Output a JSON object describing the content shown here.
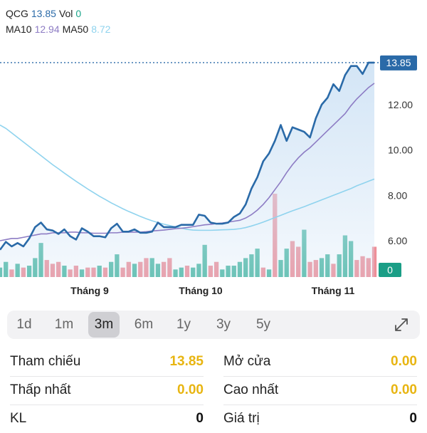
{
  "legend": {
    "symbol": "QCG",
    "price": "13.85",
    "vol_label": "Vol",
    "vol": "0",
    "ma10_label": "MA10",
    "ma10": "12.94",
    "ma50_label": "MA50",
    "ma50": "8.72"
  },
  "colors": {
    "price_line": "#2a6aa8",
    "area_fill": "#d3e5f6",
    "ma10": "#8d7cc4",
    "ma50": "#8fd3ee",
    "vol_up": "#4bb8a3",
    "vol_down": "#ee8e98",
    "price_badge": "#2a6aa8",
    "vol_badge": "#1a9e86"
  },
  "chart_data": {
    "type": "line",
    "ylim": [
      4.4,
      14.6
    ],
    "yticks": [
      "12.00",
      "10.00",
      "8.00",
      "6.00"
    ],
    "ytick_values": [
      12,
      10,
      8,
      6
    ],
    "xticks": [
      "Tháng 9",
      "Tháng 10",
      "Tháng 11"
    ],
    "current_price_label": "13.85",
    "current_price": 13.85,
    "current_volume_label": "0",
    "series": [
      {
        "name": "QCG",
        "values": [
          5.6,
          5.95,
          5.75,
          5.9,
          5.75,
          6.1,
          6.6,
          6.8,
          6.5,
          6.45,
          6.3,
          6.5,
          6.2,
          6.05,
          6.55,
          6.4,
          6.2,
          6.2,
          6.15,
          6.55,
          6.75,
          6.4,
          6.4,
          6.5,
          6.35,
          6.35,
          6.4,
          6.8,
          6.6,
          6.6,
          6.6,
          6.7,
          6.7,
          6.7,
          7.15,
          7.1,
          6.8,
          6.75,
          6.75,
          6.8,
          7.05,
          7.2,
          7.6,
          8.3,
          8.8,
          9.5,
          9.85,
          10.4,
          11.1,
          10.4,
          11.0,
          10.9,
          10.8,
          10.55,
          11.4,
          12.0,
          12.3,
          12.9,
          12.6,
          13.3,
          13.7,
          13.7,
          13.35,
          13.85,
          13.85
        ]
      },
      {
        "name": "MA10",
        "values": [
          6.0,
          6.05,
          6.1,
          6.1,
          6.15,
          6.2,
          6.25,
          6.3,
          6.3,
          6.35,
          6.35,
          6.35,
          6.38,
          6.38,
          6.35,
          6.35,
          6.33,
          6.33,
          6.33,
          6.35,
          6.35,
          6.38,
          6.38,
          6.38,
          6.38,
          6.4,
          6.43,
          6.45,
          6.47,
          6.5,
          6.53,
          6.55,
          6.58,
          6.62,
          6.66,
          6.7,
          6.72,
          6.76,
          6.78,
          6.82,
          6.86,
          6.9,
          7.0,
          7.15,
          7.35,
          7.6,
          7.9,
          8.25,
          8.6,
          9.0,
          9.35,
          9.65,
          9.9,
          10.1,
          10.35,
          10.6,
          10.85,
          11.1,
          11.35,
          11.6,
          11.95,
          12.25,
          12.5,
          12.75,
          12.94
        ]
      },
      {
        "name": "MA50",
        "values": [
          11.1,
          10.95,
          10.75,
          10.55,
          10.35,
          10.15,
          9.95,
          9.75,
          9.55,
          9.35,
          9.17,
          8.98,
          8.8,
          8.62,
          8.45,
          8.28,
          8.12,
          7.96,
          7.82,
          7.67,
          7.54,
          7.41,
          7.29,
          7.18,
          7.07,
          6.97,
          6.88,
          6.8,
          6.73,
          6.67,
          6.6,
          6.55,
          6.5,
          6.47,
          6.46,
          6.46,
          6.46,
          6.47,
          6.48,
          6.49,
          6.5,
          6.53,
          6.58,
          6.65,
          6.73,
          6.82,
          6.92,
          7.02,
          7.12,
          7.22,
          7.32,
          7.41,
          7.5,
          7.6,
          7.7,
          7.8,
          7.9,
          8.0,
          8.1,
          8.2,
          8.3,
          8.42,
          8.52,
          8.62,
          8.72
        ]
      }
    ],
    "volume": {
      "values": [
        0.25,
        0.4,
        0.2,
        0.35,
        0.25,
        0.3,
        0.5,
        0.9,
        0.45,
        0.35,
        0.4,
        0.3,
        0.2,
        0.3,
        0.2,
        0.25,
        0.25,
        0.3,
        0.25,
        0.4,
        0.6,
        0.25,
        0.4,
        0.35,
        0.4,
        0.5,
        0.5,
        0.35,
        0.4,
        0.5,
        0.2,
        0.25,
        0.3,
        0.25,
        0.35,
        0.85,
        0.3,
        0.4,
        0.2,
        0.3,
        0.3,
        0.4,
        0.5,
        0.6,
        0.75,
        0.25,
        0.2,
        2.2,
        0.45,
        0.75,
        0.95,
        0.8,
        1.25,
        0.4,
        0.45,
        0.5,
        0.6,
        0.35,
        0.6,
        1.1,
        0.95,
        0.45,
        0.55,
        0.5,
        0.8
      ],
      "up": [
        1,
        1,
        0,
        1,
        0,
        1,
        1,
        1,
        0,
        0,
        0,
        1,
        0,
        0,
        1,
        0,
        0,
        1,
        0,
        1,
        1,
        0,
        0,
        1,
        0,
        0,
        1,
        1,
        0,
        0,
        1,
        1,
        0,
        1,
        1,
        1,
        0,
        0,
        1,
        1,
        1,
        1,
        1,
        1,
        1,
        0,
        1,
        0,
        1,
        1,
        0,
        0,
        1,
        0,
        0,
        1,
        1,
        0,
        1,
        1,
        1,
        0,
        0,
        0,
        0
      ]
    }
  },
  "tabs": {
    "items": [
      "1d",
      "1m",
      "3m",
      "6m",
      "1y",
      "3y",
      "5y"
    ],
    "active": "3m"
  },
  "stats": {
    "reference_label": "Tham chiếu",
    "reference": "13.85",
    "open_label": "Mở cửa",
    "open": "0.00",
    "low_label": "Thấp nhất",
    "low": "0.00",
    "high_label": "Cao nhất",
    "high": "0.00",
    "volume_label": "KL",
    "volume": "0",
    "value_label": "Giá trị",
    "value": "0"
  },
  "icons": {
    "expand": "expand-diagonal-arrows-icon"
  }
}
